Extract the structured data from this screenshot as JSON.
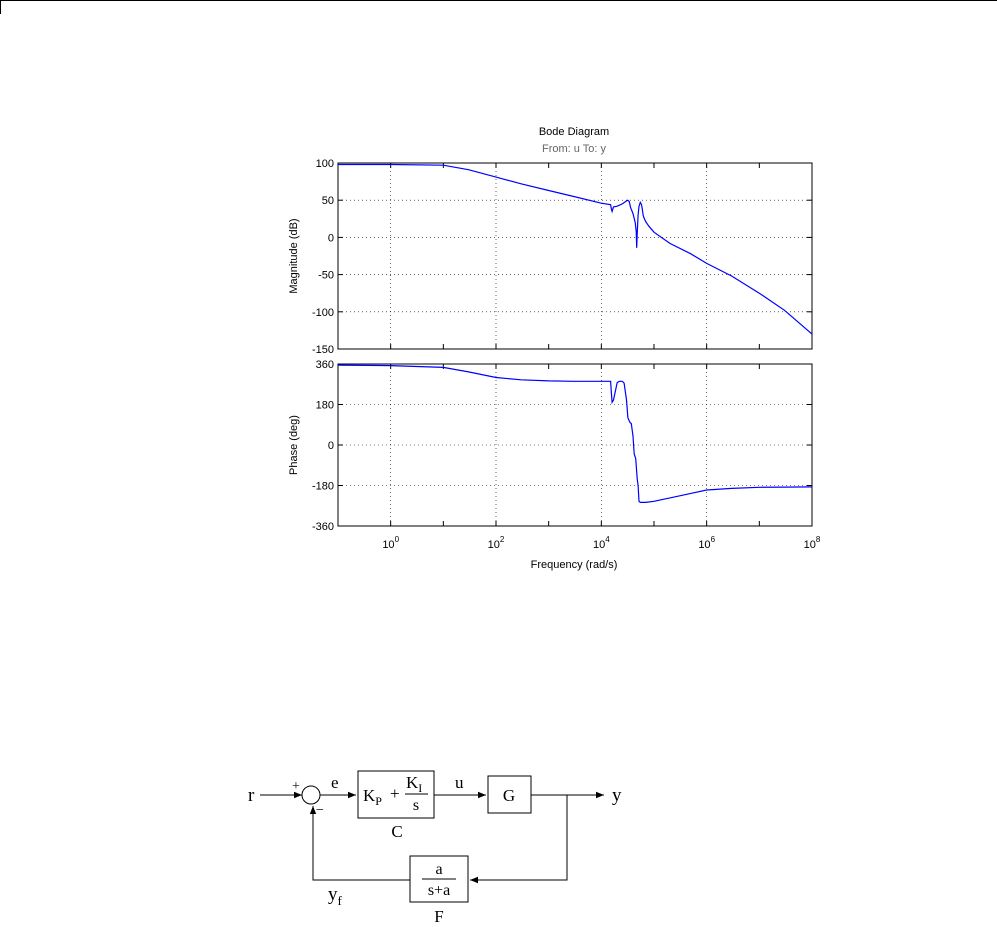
{
  "chart_data": {
    "type": "line",
    "title": "Bode Diagram",
    "subtitle": "From: u  To: y",
    "xlabel": "Frequency  (rad/s)",
    "xscale": "log",
    "xlim": [
      0.1,
      100000000
    ],
    "x_tick_labels": [
      {
        "base": "10",
        "exp": "0"
      },
      {
        "base": "10",
        "exp": "2"
      },
      {
        "base": "10",
        "exp": "4"
      },
      {
        "base": "10",
        "exp": "6"
      },
      {
        "base": "10",
        "exp": "8"
      }
    ],
    "grid": true,
    "line_color": "#0000ff",
    "panels": [
      {
        "name": "magnitude",
        "ylabel": "Magnitude (dB)",
        "ylim": [
          -150,
          100
        ],
        "y_ticks": [
          100,
          50,
          0,
          -50,
          -100,
          -150
        ],
        "y_tick_labels": [
          "100",
          "50",
          "0",
          "-50",
          "-100",
          "-150"
        ],
        "series": [
          {
            "x": [
              0.1,
              1,
              10,
              30,
              100,
              300,
              1000,
              3000,
              10000,
              15000,
              15500,
              16000,
              17000,
              20000,
              25000,
              30000,
              32000,
              34000,
              36000,
              40000,
              44000,
              46000,
              47000,
              48000,
              50000,
              52000,
              55000,
              58000,
              60000,
              62000,
              65000,
              70000,
              80000,
              100000,
              200000,
              500000,
              1000000,
              3000000,
              10000000,
              30000000,
              100000000
            ],
            "y": [
              98,
              98,
              97,
              91,
              81,
              72,
              63,
              55,
              46,
              44,
              38,
              35,
              41,
              42,
              45,
              49,
              50,
              48,
              40,
              32,
              20,
              8,
              -14,
              5,
              30,
              42,
              47,
              44,
              38,
              30,
              26,
              21,
              15,
              7,
              -8,
              -22,
              -35,
              -52,
              -75,
              -98,
              -130
            ]
          }
        ]
      },
      {
        "name": "phase",
        "ylabel": "Phase (deg)",
        "ylim": [
          -360,
          360
        ],
        "y_ticks": [
          360,
          180,
          0,
          -180,
          -360
        ],
        "y_tick_labels": [
          "360",
          "180",
          "0",
          "-180",
          "-360"
        ],
        "series": [
          {
            "x": [
              0.1,
              1,
              10,
              30,
              100,
              300,
              1000,
              3000,
              10000,
              15000,
              15500,
              16000,
              17000,
              20000,
              22000,
              25000,
              27000,
              30000,
              32000,
              35000,
              37000,
              40000,
              42000,
              45000,
              48000,
              50000,
              52000,
              55000,
              60000,
              70000,
              100000,
              200000,
              500000,
              1000000,
              3000000,
              10000000,
              30000000,
              100000000
            ],
            "y": [
              355,
              353,
              345,
              325,
              300,
              290,
              285,
              283,
              283,
              283,
              230,
              190,
              200,
              278,
              283,
              283,
              275,
              200,
              120,
              100,
              95,
              40,
              -40,
              -60,
              -150,
              -180,
              -250,
              -255,
              -255,
              -255,
              -250,
              -235,
              -215,
              -200,
              -193,
              -188,
              -187,
              -186
            ]
          }
        ]
      }
    ]
  },
  "diagram": {
    "signals": {
      "r": "r",
      "e": "e",
      "u": "u",
      "y": "y",
      "yf_main": "y",
      "yf_sub": "f"
    },
    "signs": {
      "plus": "+",
      "minus": "−"
    },
    "controller": {
      "kp_main": "K",
      "kp_sub": "P",
      "plus": "+",
      "ki_main": "K",
      "ki_sub": "I",
      "den": "s",
      "label": "C"
    },
    "plant": {
      "label": "G"
    },
    "filter": {
      "num": "a",
      "den": "s+a",
      "label": "F"
    }
  }
}
